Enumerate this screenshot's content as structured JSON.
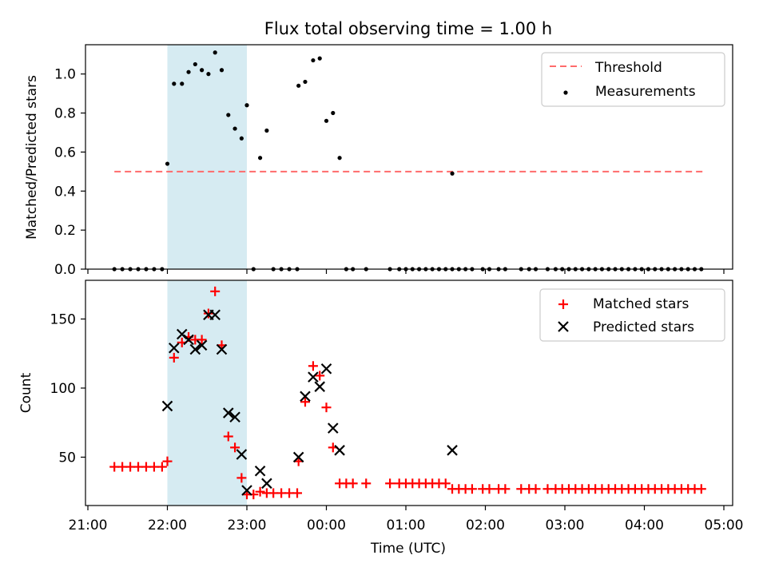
{
  "figure": {
    "title": "Flux total observing time = 1.00 h"
  },
  "chart_data": [
    {
      "type": "scatter",
      "panel": "top",
      "xlabel": "",
      "ylabel": "Matched/Predicted stars",
      "xlim": [
        "21:00",
        "05:00"
      ],
      "ylim": [
        0,
        1.15
      ],
      "yticks": [
        "0.0",
        "0.2",
        "0.4",
        "0.6",
        "0.8",
        "1.0"
      ],
      "highlight_band": [
        "22:00",
        "23:00"
      ],
      "legend_position": "top-right",
      "threshold": {
        "name": "Threshold",
        "value": 0.5,
        "x_range": [
          "21:20",
          "04:45"
        ],
        "color": "#ff6b6b"
      },
      "series": [
        {
          "name": "Measurements",
          "color": "#000000",
          "points": [
            [
              "21:20",
              0
            ],
            [
              "21:26",
              0
            ],
            [
              "21:32",
              0
            ],
            [
              "21:38",
              0
            ],
            [
              "21:44",
              0
            ],
            [
              "21:50",
              0
            ],
            [
              "21:56",
              0
            ],
            [
              "22:00",
              0.54
            ],
            [
              "22:05",
              0.95
            ],
            [
              "22:11",
              0.95
            ],
            [
              "22:16",
              1.01
            ],
            [
              "22:21",
              1.05
            ],
            [
              "22:26",
              1.02
            ],
            [
              "22:31",
              1.0
            ],
            [
              "22:36",
              1.11
            ],
            [
              "22:41",
              1.02
            ],
            [
              "22:46",
              0.79
            ],
            [
              "22:51",
              0.72
            ],
            [
              "22:56",
              0.67
            ],
            [
              "23:00",
              0.84
            ],
            [
              "23:05",
              0
            ],
            [
              "23:10",
              0.57
            ],
            [
              "23:15",
              0.71
            ],
            [
              "23:20",
              0
            ],
            [
              "23:26",
              0
            ],
            [
              "23:32",
              0
            ],
            [
              "23:38",
              0
            ],
            [
              "23:39",
              0.94
            ],
            [
              "23:44",
              0.96
            ],
            [
              "23:50",
              1.07
            ],
            [
              "23:55",
              1.08
            ],
            [
              "00:00",
              0.76
            ],
            [
              "00:05",
              0.8
            ],
            [
              "00:10",
              0.57
            ],
            [
              "00:15",
              0
            ],
            [
              "00:20",
              0
            ],
            [
              "00:30",
              0
            ],
            [
              "00:48",
              0
            ],
            [
              "00:55",
              0
            ],
            [
              "01:00",
              0
            ],
            [
              "01:05",
              0
            ],
            [
              "01:10",
              0
            ],
            [
              "01:15",
              0
            ],
            [
              "01:20",
              0
            ],
            [
              "01:25",
              0
            ],
            [
              "01:30",
              0
            ],
            [
              "01:35",
              0
            ],
            [
              "01:40",
              0
            ],
            [
              "01:45",
              0
            ],
            [
              "01:50",
              0
            ],
            [
              "01:58",
              0
            ],
            [
              "02:03",
              0
            ],
            [
              "02:10",
              0
            ],
            [
              "02:15",
              0
            ],
            [
              "01:35",
              0.49
            ],
            [
              "02:27",
              0
            ],
            [
              "02:33",
              0
            ],
            [
              "02:38",
              0
            ],
            [
              "02:47",
              0
            ],
            [
              "02:53",
              0
            ],
            [
              "02:58",
              0
            ],
            [
              "03:03",
              0
            ],
            [
              "03:08",
              0
            ],
            [
              "03:13",
              0
            ],
            [
              "03:18",
              0
            ],
            [
              "03:23",
              0
            ],
            [
              "03:28",
              0
            ],
            [
              "03:33",
              0
            ],
            [
              "03:38",
              0
            ],
            [
              "03:43",
              0
            ],
            [
              "03:48",
              0
            ],
            [
              "03:53",
              0
            ],
            [
              "03:58",
              0
            ],
            [
              "04:03",
              0
            ],
            [
              "04:08",
              0
            ],
            [
              "04:13",
              0
            ],
            [
              "04:18",
              0
            ],
            [
              "04:23",
              0
            ],
            [
              "04:28",
              0
            ],
            [
              "04:33",
              0
            ],
            [
              "04:38",
              0
            ],
            [
              "04:43",
              0
            ]
          ]
        }
      ]
    },
    {
      "type": "scatter",
      "panel": "bottom",
      "xlabel": "Time (UTC)",
      "ylabel": "Count",
      "xlim": [
        "21:00",
        "05:00"
      ],
      "ylim": [
        15,
        178
      ],
      "yticks": [
        "50",
        "100",
        "150"
      ],
      "xticks": [
        "21:00",
        "22:00",
        "23:00",
        "00:00",
        "01:00",
        "02:00",
        "03:00",
        "04:00",
        "05:00"
      ],
      "highlight_band": [
        "22:00",
        "23:00"
      ],
      "legend_position": "top-right",
      "series": [
        {
          "name": "Matched stars",
          "marker": "plus",
          "color": "#ff0000",
          "points": [
            [
              "21:20",
              43
            ],
            [
              "21:26",
              43
            ],
            [
              "21:32",
              43
            ],
            [
              "21:38",
              43
            ],
            [
              "21:44",
              43
            ],
            [
              "21:50",
              43
            ],
            [
              "21:56",
              43
            ],
            [
              "22:00",
              47
            ],
            [
              "22:05",
              122
            ],
            [
              "22:11",
              133
            ],
            [
              "22:16",
              137
            ],
            [
              "22:21",
              135
            ],
            [
              "22:26",
              135
            ],
            [
              "22:31",
              154
            ],
            [
              "22:36",
              170
            ],
            [
              "22:41",
              131
            ],
            [
              "22:46",
              65
            ],
            [
              "22:51",
              57
            ],
            [
              "22:56",
              35
            ],
            [
              "23:00",
              23
            ],
            [
              "23:05",
              23
            ],
            [
              "23:10",
              25
            ],
            [
              "23:15",
              24
            ],
            [
              "23:20",
              24
            ],
            [
              "23:26",
              24
            ],
            [
              "23:32",
              24
            ],
            [
              "23:38",
              24
            ],
            [
              "23:39",
              47
            ],
            [
              "23:44",
              90
            ],
            [
              "23:50",
              116
            ],
            [
              "23:55",
              109
            ],
            [
              "00:00",
              86
            ],
            [
              "00:05",
              57
            ],
            [
              "00:10",
              31
            ],
            [
              "00:15",
              31
            ],
            [
              "00:20",
              31
            ],
            [
              "00:30",
              31
            ],
            [
              "00:48",
              31
            ],
            [
              "00:55",
              31
            ],
            [
              "01:00",
              31
            ],
            [
              "01:05",
              31
            ],
            [
              "01:10",
              31
            ],
            [
              "01:15",
              31
            ],
            [
              "01:20",
              31
            ],
            [
              "01:25",
              31
            ],
            [
              "01:30",
              31
            ],
            [
              "01:35",
              27
            ],
            [
              "01:40",
              27
            ],
            [
              "01:45",
              27
            ],
            [
              "01:50",
              27
            ],
            [
              "01:58",
              27
            ],
            [
              "02:03",
              27
            ],
            [
              "02:10",
              27
            ],
            [
              "02:15",
              27
            ],
            [
              "02:27",
              27
            ],
            [
              "02:33",
              27
            ],
            [
              "02:38",
              27
            ],
            [
              "02:47",
              27
            ],
            [
              "02:53",
              27
            ],
            [
              "02:58",
              27
            ],
            [
              "03:03",
              27
            ],
            [
              "03:08",
              27
            ],
            [
              "03:13",
              27
            ],
            [
              "03:18",
              27
            ],
            [
              "03:23",
              27
            ],
            [
              "03:28",
              27
            ],
            [
              "03:33",
              27
            ],
            [
              "03:38",
              27
            ],
            [
              "03:43",
              27
            ],
            [
              "03:48",
              27
            ],
            [
              "03:53",
              27
            ],
            [
              "03:58",
              27
            ],
            [
              "04:03",
              27
            ],
            [
              "04:08",
              27
            ],
            [
              "04:13",
              27
            ],
            [
              "04:18",
              27
            ],
            [
              "04:23",
              27
            ],
            [
              "04:28",
              27
            ],
            [
              "04:33",
              27
            ],
            [
              "04:38",
              27
            ],
            [
              "04:43",
              27
            ]
          ]
        },
        {
          "name": "Predicted stars",
          "marker": "x",
          "color": "#000000",
          "points": [
            [
              "22:00",
              87
            ],
            [
              "22:05",
              129
            ],
            [
              "22:11",
              139
            ],
            [
              "22:16",
              135
            ],
            [
              "22:21",
              128
            ],
            [
              "22:26",
              131
            ],
            [
              "22:31",
              153
            ],
            [
              "22:36",
              153
            ],
            [
              "22:41",
              128
            ],
            [
              "22:46",
              82
            ],
            [
              "22:51",
              79
            ],
            [
              "22:56",
              52
            ],
            [
              "23:00",
              26
            ],
            [
              "23:10",
              40
            ],
            [
              "23:15",
              31
            ],
            [
              "23:39",
              50
            ],
            [
              "23:44",
              94
            ],
            [
              "23:50",
              108
            ],
            [
              "23:55",
              101
            ],
            [
              "00:00",
              114
            ],
            [
              "00:05",
              71
            ],
            [
              "00:10",
              55
            ],
            [
              "01:35",
              55
            ]
          ]
        }
      ]
    }
  ]
}
